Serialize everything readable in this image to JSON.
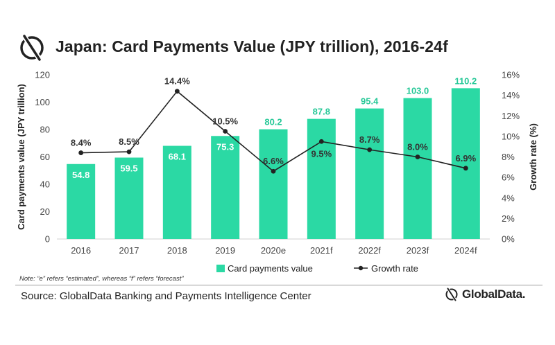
{
  "title": "Japan: Card Payments Value (JPY trillion), 2016-24f",
  "note": "Note: “e” refers “estimated”, whereas “f” refers “forecast”",
  "source": "Source: GlobalData Banking and Payments Intelligence Center",
  "brand": "GlobalData.",
  "colors": {
    "bar": "#2bd9a4",
    "bar_label": "#26c897",
    "line": "#222222",
    "axis_text": "#444444"
  },
  "chart_data": {
    "type": "bar",
    "categories": [
      "2016",
      "2017",
      "2018",
      "2019",
      "2020e",
      "2021f",
      "2022f",
      "2023f",
      "2024f"
    ],
    "series": [
      {
        "name": "Card payments value",
        "type": "bar",
        "axis": "left",
        "values": [
          54.8,
          59.5,
          68.1,
          75.3,
          80.2,
          87.8,
          95.4,
          103.0,
          110.2
        ],
        "labels": [
          "54.8",
          "59.5",
          "68.1",
          "75.3",
          "80.2",
          "87.8",
          "95.4",
          "103.0",
          "110.2"
        ]
      },
      {
        "name": "Growth rate",
        "type": "line",
        "axis": "right",
        "values": [
          8.4,
          8.5,
          14.4,
          10.5,
          6.6,
          9.5,
          8.7,
          8.0,
          6.9
        ],
        "labels": [
          "8.4%",
          "8.5%",
          "14.4%",
          "10.5%",
          "6.6%",
          "9.5%",
          "8.7%",
          "8.0%",
          "6.9%"
        ]
      }
    ],
    "ylabel": "Card payments value (JPY trillion)",
    "y2label": "Growth rate (%)",
    "ylim": [
      0,
      120
    ],
    "y2lim": [
      0,
      16
    ],
    "yticks": [
      "0",
      "20",
      "40",
      "60",
      "80",
      "100",
      "120"
    ],
    "y2ticks": [
      "0%",
      "2%",
      "4%",
      "6%",
      "8%",
      "10%",
      "12%",
      "14%",
      "16%"
    ],
    "grid": false,
    "legend": "bottom-center"
  }
}
